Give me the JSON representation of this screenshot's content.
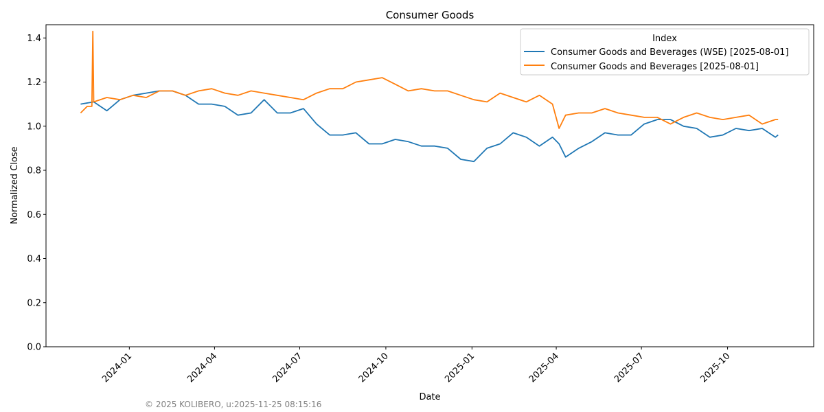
{
  "chart_data": {
    "type": "line",
    "title": "Consumer Goods",
    "xlabel": "Date",
    "ylabel": "Normalized Close",
    "xlim": [
      "2023-10-04",
      "2026-01-01"
    ],
    "ylim": [
      0,
      1.46
    ],
    "x_ticks": [
      "2024-01",
      "2024-04",
      "2024-07",
      "2024-10",
      "2025-01",
      "2025-04",
      "2025-07",
      "2025-10"
    ],
    "y_ticks": [
      "0.0",
      "0.2",
      "0.4",
      "0.6",
      "0.8",
      "1.0",
      "1.2",
      "1.4"
    ],
    "grid": false,
    "legend": {
      "title": "Index",
      "placement": "upper right"
    },
    "series": [
      {
        "name": "Consumer Goods and Beverages (WSE) [2025-08-01]",
        "color": "#1f77b4",
        "x": [
          "2023-11-10",
          "2023-11-24",
          "2023-12-08",
          "2023-12-22",
          "2024-01-05",
          "2024-01-19",
          "2024-02-02",
          "2024-02-16",
          "2024-03-01",
          "2024-03-15",
          "2024-03-29",
          "2024-04-12",
          "2024-04-26",
          "2024-05-10",
          "2024-05-24",
          "2024-06-07",
          "2024-06-21",
          "2024-07-05",
          "2024-07-19",
          "2024-08-02",
          "2024-08-16",
          "2024-08-30",
          "2024-09-13",
          "2024-09-27",
          "2024-10-11",
          "2024-10-25",
          "2024-11-08",
          "2024-11-22",
          "2024-12-06",
          "2024-12-20",
          "2025-01-03",
          "2025-01-17",
          "2025-01-31",
          "2025-02-14",
          "2025-02-28",
          "2025-03-14",
          "2025-03-28",
          "2025-04-04",
          "2025-04-11",
          "2025-04-25",
          "2025-05-09",
          "2025-05-23",
          "2025-06-06",
          "2025-06-20",
          "2025-07-04",
          "2025-07-18",
          "2025-08-01",
          "2025-08-15",
          "2025-08-29",
          "2025-09-12",
          "2025-09-26",
          "2025-10-10",
          "2025-10-24",
          "2025-11-07",
          "2025-11-21",
          "2025-11-24"
        ],
        "y": [
          1.1,
          1.11,
          1.07,
          1.12,
          1.14,
          1.15,
          1.16,
          1.16,
          1.14,
          1.1,
          1.1,
          1.09,
          1.05,
          1.06,
          1.12,
          1.06,
          1.06,
          1.08,
          1.01,
          0.96,
          0.96,
          0.97,
          0.92,
          0.92,
          0.94,
          0.93,
          0.91,
          0.91,
          0.9,
          0.85,
          0.84,
          0.9,
          0.92,
          0.97,
          0.95,
          0.91,
          0.95,
          0.92,
          0.86,
          0.9,
          0.93,
          0.97,
          0.96,
          0.96,
          1.01,
          1.03,
          1.03,
          1.0,
          0.99,
          0.95,
          0.96,
          0.99,
          0.98,
          0.99,
          0.95,
          0.96
        ]
      },
      {
        "name": "Consumer Goods and Beverages [2025-08-01]",
        "color": "#ff7f0e",
        "x": [
          "2023-11-10",
          "2023-11-17",
          "2023-11-22",
          "2023-11-23",
          "2023-11-24",
          "2023-12-08",
          "2023-12-22",
          "2024-01-05",
          "2024-01-19",
          "2024-02-02",
          "2024-02-16",
          "2024-03-01",
          "2024-03-15",
          "2024-03-29",
          "2024-04-12",
          "2024-04-26",
          "2024-05-10",
          "2024-05-24",
          "2024-06-07",
          "2024-06-21",
          "2024-07-05",
          "2024-07-19",
          "2024-08-02",
          "2024-08-16",
          "2024-08-30",
          "2024-09-13",
          "2024-09-27",
          "2024-10-11",
          "2024-10-25",
          "2024-11-08",
          "2024-11-22",
          "2024-12-06",
          "2024-12-20",
          "2025-01-03",
          "2025-01-17",
          "2025-01-31",
          "2025-02-14",
          "2025-02-28",
          "2025-03-14",
          "2025-03-28",
          "2025-04-04",
          "2025-04-11",
          "2025-04-25",
          "2025-05-09",
          "2025-05-23",
          "2025-06-06",
          "2025-06-20",
          "2025-07-04",
          "2025-07-18",
          "2025-08-01",
          "2025-08-15",
          "2025-08-29",
          "2025-09-12",
          "2025-09-26",
          "2025-10-10",
          "2025-10-24",
          "2025-11-07",
          "2025-11-21",
          "2025-11-24"
        ],
        "y": [
          1.06,
          1.09,
          1.09,
          1.43,
          1.11,
          1.13,
          1.12,
          1.14,
          1.13,
          1.16,
          1.16,
          1.14,
          1.16,
          1.17,
          1.15,
          1.14,
          1.16,
          1.15,
          1.14,
          1.13,
          1.12,
          1.15,
          1.17,
          1.17,
          1.2,
          1.21,
          1.22,
          1.19,
          1.16,
          1.17,
          1.16,
          1.16,
          1.14,
          1.12,
          1.11,
          1.15,
          1.13,
          1.11,
          1.14,
          1.1,
          0.99,
          1.05,
          1.06,
          1.06,
          1.08,
          1.06,
          1.05,
          1.04,
          1.04,
          1.01,
          1.04,
          1.06,
          1.04,
          1.03,
          1.04,
          1.05,
          1.01,
          1.03,
          1.03
        ]
      }
    ]
  },
  "footer": "© 2025 KOLIBERO, u:2025-11-25 08:15:16"
}
